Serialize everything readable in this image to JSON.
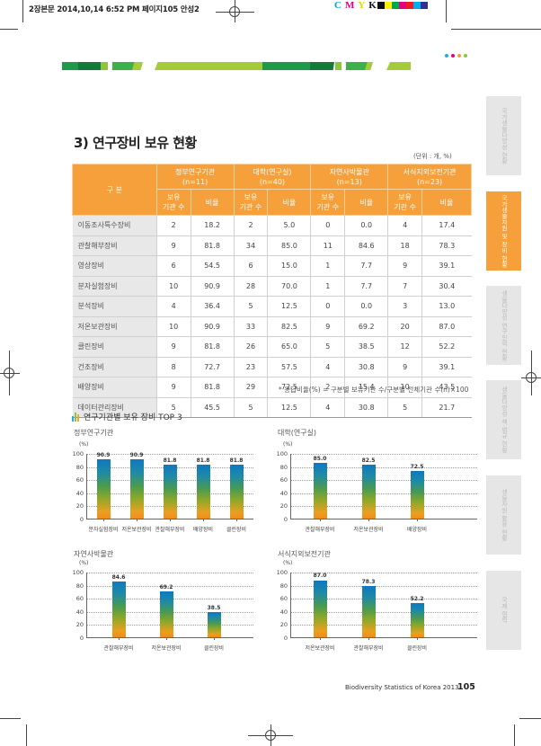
{
  "print_marks": {
    "slug": "2장본문  2014,10,14 6:52 PM  페이지105   안성2",
    "cmyk_letters": [
      "C",
      "M",
      "Y",
      "K"
    ],
    "cmyk_colors": [
      "#00a0e0",
      "#e4007f",
      "#ffe100",
      "#111111"
    ],
    "swatches": [
      "#111111",
      "#fff200",
      "#00a650",
      "#e4007f",
      "#ed1c24",
      "#00aeef",
      "#2e3192"
    ]
  },
  "banner": {
    "dots": [
      "#29aae1",
      "#e4007f",
      "#f5a03a",
      "#8cc63f"
    ]
  },
  "side_tabs": [
    {
      "label": "국가생물다양성 현황",
      "active": false
    },
    {
      "label": "국가생물자원 및 장비 현황",
      "active": true
    },
    {
      "label": "생물다양성 연구인력 현황",
      "active": false
    },
    {
      "label": "생물다양성 책·법규 현황",
      "active": false
    },
    {
      "label": "생물자원 활용 현황",
      "active": false
    },
    {
      "label": "국제 협력",
      "active": false
    }
  ],
  "section": {
    "title": "3) 연구장비 보유 현황",
    "unit": "(단위 : 개, %)"
  },
  "table": {
    "row_header": "구  분",
    "groups": [
      {
        "name": "정부연구기관",
        "n": "(n=11)"
      },
      {
        "name": "대학(연구실)",
        "n": "(n=40)"
      },
      {
        "name": "자연사박물관",
        "n": "(n=13)"
      },
      {
        "name": "서식지외보전기관",
        "n": "(n=23)"
      }
    ],
    "sub_count": "보유\n기관 수",
    "sub_count_l1": "보유",
    "sub_count_l2": "기관 수",
    "sub_ratio": "비율",
    "rows": [
      {
        "label": "이동조사특수장비",
        "values": [
          "2",
          "18.2",
          "2",
          "5.0",
          "0",
          "0.0",
          "4",
          "17.4"
        ]
      },
      {
        "label": "관찰해부장비",
        "values": [
          "9",
          "81.8",
          "34",
          "85.0",
          "11",
          "84.6",
          "18",
          "78.3"
        ]
      },
      {
        "label": "영상장비",
        "values": [
          "6",
          "54.5",
          "6",
          "15.0",
          "1",
          "7.7",
          "9",
          "39.1"
        ]
      },
      {
        "label": "분자실험장비",
        "values": [
          "10",
          "90.9",
          "28",
          "70.0",
          "1",
          "7.7",
          "7",
          "30.4"
        ]
      },
      {
        "label": "분석장비",
        "values": [
          "4",
          "36.4",
          "5",
          "12.5",
          "0",
          "0.0",
          "3",
          "13.0"
        ]
      },
      {
        "label": "저온보관장비",
        "values": [
          "10",
          "90.9",
          "33",
          "82.5",
          "9",
          "69.2",
          "20",
          "87.0"
        ]
      },
      {
        "label": "클린장비",
        "values": [
          "9",
          "81.8",
          "26",
          "65.0",
          "5",
          "38.5",
          "12",
          "52.2"
        ]
      },
      {
        "label": "건조장비",
        "values": [
          "8",
          "72.7",
          "23",
          "57.5",
          "4",
          "30.8",
          "9",
          "39.1"
        ]
      },
      {
        "label": "배양장비",
        "values": [
          "9",
          "81.8",
          "29",
          "72.5",
          "2",
          "15.4",
          "10",
          "43.5"
        ]
      },
      {
        "label": "데이터관리장비",
        "values": [
          "5",
          "45.5",
          "5",
          "12.5",
          "4",
          "30.8",
          "5",
          "21.7"
        ]
      }
    ],
    "note": "* 응답비율(%) = 구분별 보유기관 수/구분별 전체기관 수(n)×100"
  },
  "charts_section": {
    "title": "연구기관별 보유 장비 TOP 3",
    "icon_colors": [
      "#29aae1",
      "#8cc63f",
      "#f5a03a"
    ]
  },
  "chart_data": [
    {
      "type": "bar",
      "title": "정부연구기관",
      "ylabel": "(%)",
      "ylim": [
        0,
        100
      ],
      "yticks": [
        0,
        20,
        40,
        60,
        80,
        100
      ],
      "grid": true,
      "categories": [
        "분자실험장비",
        "저온보관장비",
        "관찰해부장비",
        "배양장비",
        "클린장비"
      ],
      "values": [
        90.9,
        90.9,
        81.8,
        81.8,
        81.8
      ],
      "value_labels": [
        "90.9",
        "90.9",
        "81.8",
        "81.8",
        "81.8"
      ]
    },
    {
      "type": "bar",
      "title": "대학(연구실)",
      "ylabel": "(%)",
      "ylim": [
        0,
        100
      ],
      "yticks": [
        0,
        20,
        40,
        60,
        80,
        100
      ],
      "grid": true,
      "categories": [
        "관찰해부장비",
        "저온보관장비",
        "배양장비"
      ],
      "values": [
        85.0,
        82.5,
        72.5
      ],
      "value_labels": [
        "85.0",
        "82.5",
        "72.5"
      ]
    },
    {
      "type": "bar",
      "title": "자연사박물관",
      "ylabel": "(%)",
      "ylim": [
        0,
        100
      ],
      "yticks": [
        0,
        20,
        40,
        60,
        80,
        100
      ],
      "grid": true,
      "categories": [
        "관찰해부장비",
        "저온보관장비",
        "클린장비"
      ],
      "values": [
        84.6,
        69.2,
        38.5
      ],
      "value_labels": [
        "84.6",
        "69.2",
        "38.5"
      ]
    },
    {
      "type": "bar",
      "title": "서식지외보전기관",
      "ylabel": "(%)",
      "ylim": [
        0,
        100
      ],
      "yticks": [
        0,
        20,
        40,
        60,
        80,
        100
      ],
      "grid": true,
      "categories": [
        "저온보관장비",
        "관찰해부장비",
        "클린장비"
      ],
      "values": [
        87.0,
        78.3,
        52.2
      ],
      "value_labels": [
        "87.0",
        "78.3",
        "52.2"
      ]
    }
  ],
  "footer": {
    "publication": "Biodiversity Statistics of Korea 2013",
    "page": "105"
  }
}
